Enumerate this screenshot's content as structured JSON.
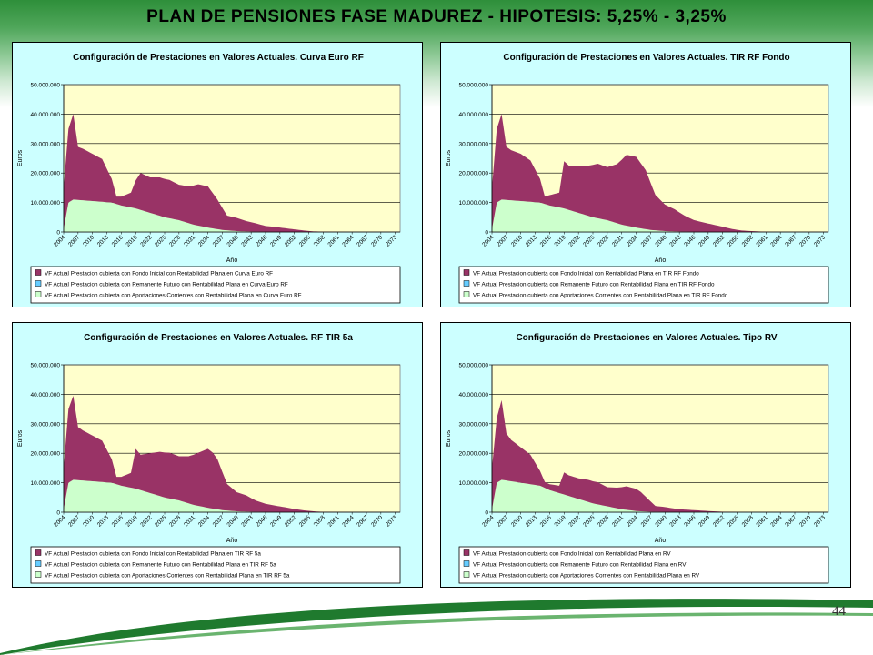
{
  "slide": {
    "title": "PLAN DE PENSIONES FASE MADUREZ  -  HIPOTESIS:  5,25%  -  3,25%",
    "page_number": "44"
  },
  "colors": {
    "panel_bg": "#ccffff",
    "plot_bg": "#ffffcc",
    "series_fondo": "#993366",
    "series_remanente": "#66ccff",
    "series_aportaciones": "#ccffcc",
    "header_green": "#2e8f3a"
  },
  "chart_data": [
    {
      "type": "area",
      "title": "Configuración de Prestaciones en Valores Actuales. Curva Euro RF",
      "xlabel": "Año",
      "ylabel": "Euros",
      "ylim": [
        0,
        50000000
      ],
      "yticks": [
        "0",
        "10.000.000",
        "20.000.000",
        "30.000.000",
        "40.000.000",
        "50.000.000"
      ],
      "xlim": [
        2004,
        2074
      ],
      "xticks": [
        "2004",
        "2007",
        "2010",
        "2013",
        "2016",
        "2019",
        "2022",
        "2025",
        "2028",
        "2031",
        "2034",
        "2037",
        "2040",
        "2043",
        "2046",
        "2049",
        "2052",
        "2055",
        "2058",
        "2061",
        "2064",
        "2067",
        "2070",
        "2073"
      ],
      "grid": true,
      "legend_position": "bottom",
      "stacked": true,
      "series": [
        {
          "name": "VF Actual Prestacion cubierta con Fondo Inicial con Rentabilidad Plana en Curva Euro RF",
          "x": [
            2004,
            2005,
            2006,
            2007,
            2008,
            2010,
            2012,
            2014,
            2015,
            2016,
            2018,
            2019,
            2020,
            2022,
            2024,
            2026,
            2028,
            2030,
            2032,
            2034,
            2035,
            2036,
            2037,
            2038,
            2040,
            2042,
            2044,
            2046,
            2048,
            2050,
            2052,
            2054,
            2056,
            2058,
            2062,
            2070,
            2074
          ],
          "values": [
            14000000,
            25000000,
            29000000,
            18000000,
            17500000,
            16000000,
            14500000,
            8000000,
            2500000,
            3000000,
            5000000,
            9500000,
            12500000,
            12000000,
            13000000,
            13000000,
            12000000,
            12500000,
            14000000,
            14000000,
            12000000,
            10000000,
            7500000,
            5000000,
            4500000,
            3500000,
            2800000,
            2000000,
            1700000,
            1300000,
            900000,
            500000,
            200000,
            100000,
            0,
            0,
            0
          ]
        },
        {
          "name": "VF Actual Prestacion cubierta con Remanente Futuro con Rentabilidad Plana en Curva Euro RF",
          "x": [
            2004,
            2074
          ],
          "values": [
            0,
            0
          ]
        },
        {
          "name": "VF Actual Prestacion cubierta con Aportaciones Corrientes con Rentabilidad Plana en Curva Euro RF",
          "x": [
            2004,
            2005,
            2006,
            2010,
            2014,
            2016,
            2019,
            2022,
            2025,
            2028,
            2031,
            2034,
            2037,
            2040,
            2043,
            2046,
            2050,
            2054,
            2058,
            2062,
            2074
          ],
          "values": [
            1000000,
            10000000,
            11000000,
            10500000,
            10000000,
            9000000,
            8000000,
            6500000,
            5000000,
            4000000,
            2500000,
            1500000,
            700000,
            300000,
            150000,
            50000,
            0,
            0,
            0,
            0,
            0
          ]
        }
      ]
    },
    {
      "type": "area",
      "title": "Configuración de Prestaciones en Valores Actuales. TIR RF Fondo",
      "xlabel": "Año",
      "ylabel": "Euros",
      "ylim": [
        0,
        50000000
      ],
      "yticks": [
        "0",
        "10.000.000",
        "20.000.000",
        "30.000.000",
        "40.000.000",
        "50.000.000"
      ],
      "xlim": [
        2004,
        2074
      ],
      "xticks": [
        "2004",
        "2007",
        "2010",
        "2013",
        "2016",
        "2019",
        "2022",
        "2025",
        "2028",
        "2031",
        "2034",
        "2037",
        "2040",
        "2043",
        "2046",
        "2049",
        "2052",
        "2055",
        "2058",
        "2061",
        "2064",
        "2067",
        "2070",
        "2073"
      ],
      "grid": true,
      "legend_position": "bottom",
      "stacked": true,
      "series": [
        {
          "name": "VF Actual Prestacion cubierta con Fondo Inicial con Rentabilidad Plana en TIR RF Fondo",
          "x": [
            2004,
            2005,
            2006,
            2007,
            2008,
            2010,
            2012,
            2014,
            2015,
            2016,
            2018,
            2019,
            2020,
            2022,
            2024,
            2026,
            2028,
            2030,
            2032,
            2034,
            2035,
            2036,
            2037,
            2038,
            2040,
            2042,
            2044,
            2046,
            2048,
            2050,
            2052,
            2054,
            2056,
            2058,
            2062,
            2070,
            2074
          ],
          "values": [
            14000000,
            25000000,
            29000000,
            18000000,
            17000000,
            16000000,
            14000000,
            8000000,
            2500000,
            3500000,
            5000000,
            16000000,
            15000000,
            16000000,
            17000000,
            18500000,
            18000000,
            20000000,
            24000000,
            24000000,
            22000000,
            20000000,
            16000000,
            12000000,
            9000000,
            7500000,
            5500000,
            4000000,
            3200000,
            2500000,
            1800000,
            1000000,
            500000,
            300000,
            0,
            0,
            0
          ]
        },
        {
          "name": "VF Actual Prestacion cubierta con Remanente Futuro con Rentabilidad Plana en TIR RF Fondo",
          "x": [
            2004,
            2074
          ],
          "values": [
            0,
            0
          ]
        },
        {
          "name": "VF Actual Prestacion cubierta con Aportaciones Corrientes con Rentabilidad Plana en TIR RF Fondo",
          "x": [
            2004,
            2005,
            2006,
            2010,
            2014,
            2016,
            2019,
            2022,
            2025,
            2028,
            2031,
            2034,
            2037,
            2040,
            2043,
            2046,
            2050,
            2054,
            2058,
            2062,
            2074
          ],
          "values": [
            1000000,
            10000000,
            11000000,
            10500000,
            10000000,
            9000000,
            8000000,
            6500000,
            5000000,
            4000000,
            2500000,
            1500000,
            700000,
            300000,
            150000,
            50000,
            0,
            0,
            0,
            0,
            0
          ]
        }
      ]
    },
    {
      "type": "area",
      "title": "Configuración de Prestaciones en Valores Actuales. RF TIR 5a",
      "xlabel": "Año",
      "ylabel": "Euros",
      "ylim": [
        0,
        50000000
      ],
      "yticks": [
        "0",
        "10.000.000",
        "20.000.000",
        "30.000.000",
        "40.000.000",
        "50.000.000"
      ],
      "xlim": [
        2004,
        2074
      ],
      "xticks": [
        "2004",
        "2007",
        "2010",
        "2013",
        "2016",
        "2019",
        "2022",
        "2025",
        "2028",
        "2031",
        "2034",
        "2037",
        "2040",
        "2043",
        "2046",
        "2049",
        "2052",
        "2055",
        "2058",
        "2061",
        "2064",
        "2067",
        "2070",
        "2073"
      ],
      "grid": true,
      "legend_position": "bottom",
      "stacked": true,
      "series": [
        {
          "name": "VF Actual Prestacion cubierta con Fondo Inicial con Rentabilidad Plana en TIR RF 5a",
          "x": [
            2004,
            2005,
            2006,
            2007,
            2008,
            2010,
            2012,
            2014,
            2015,
            2016,
            2018,
            2019,
            2020,
            2022,
            2024,
            2026,
            2028,
            2030,
            2032,
            2034,
            2035,
            2036,
            2037,
            2038,
            2040,
            2042,
            2044,
            2046,
            2048,
            2050,
            2052,
            2054,
            2056,
            2058,
            2062,
            2070,
            2074
          ],
          "values": [
            14000000,
            25000000,
            28500000,
            18000000,
            17000000,
            15500000,
            14000000,
            8000000,
            2500000,
            3000000,
            5000000,
            13500000,
            12000000,
            13500000,
            15000000,
            15500000,
            15000000,
            16000000,
            18000000,
            20000000,
            19000000,
            17000000,
            13000000,
            9000000,
            6500000,
            5500000,
            3800000,
            2800000,
            2200000,
            1700000,
            1100000,
            600000,
            300000,
            100000,
            0,
            0,
            0
          ]
        },
        {
          "name": "VF Actual Prestacion cubierta con Remanente Futuro con Rentabilidad Plana en TIR RF 5a",
          "x": [
            2004,
            2074
          ],
          "values": [
            0,
            0
          ]
        },
        {
          "name": "VF Actual Prestacion cubierta con Aportaciones Corrientes con Rentabilidad Plana en TIR RF 5a",
          "x": [
            2004,
            2005,
            2006,
            2010,
            2014,
            2016,
            2019,
            2022,
            2025,
            2028,
            2031,
            2034,
            2037,
            2040,
            2043,
            2046,
            2050,
            2054,
            2058,
            2062,
            2074
          ],
          "values": [
            1000000,
            10000000,
            11000000,
            10500000,
            10000000,
            9000000,
            8000000,
            6500000,
            5000000,
            4000000,
            2500000,
            1500000,
            700000,
            300000,
            150000,
            50000,
            0,
            0,
            0,
            0,
            0
          ]
        }
      ]
    },
    {
      "type": "area",
      "title": "Configuración de Prestaciones en Valores Actuales. Tipo RV",
      "xlabel": "Año",
      "ylabel": "Euros",
      "ylim": [
        0,
        50000000
      ],
      "yticks": [
        "0",
        "10.000.000",
        "20.000.000",
        "30.000.000",
        "40.000.000",
        "50.000.000"
      ],
      "xlim": [
        2004,
        2074
      ],
      "xticks": [
        "2004",
        "2007",
        "2010",
        "2013",
        "2016",
        "2019",
        "2022",
        "2025",
        "2028",
        "2031",
        "2034",
        "2037",
        "2040",
        "2043",
        "2046",
        "2049",
        "2052",
        "2055",
        "2058",
        "2061",
        "2064",
        "2067",
        "2070",
        "2073"
      ],
      "grid": true,
      "legend_position": "bottom",
      "stacked": true,
      "series": [
        {
          "name": "VF Actual Prestacion cubierta con Fondo Inicial con Rentabilidad Plana en RV",
          "x": [
            2004,
            2005,
            2006,
            2007,
            2008,
            2010,
            2012,
            2014,
            2015,
            2016,
            2018,
            2019,
            2020,
            2022,
            2024,
            2026,
            2028,
            2030,
            2032,
            2034,
            2035,
            2036,
            2037,
            2038,
            2040,
            2042,
            2044,
            2046,
            2048,
            2050,
            2052,
            2054,
            2056,
            2058,
            2062,
            2070,
            2074
          ],
          "values": [
            14000000,
            22000000,
            27000000,
            16000000,
            14000000,
            12000000,
            10000000,
            5000000,
            2000000,
            2000000,
            2500000,
            7500000,
            7000000,
            7000000,
            7500000,
            7500000,
            6500000,
            7000000,
            8000000,
            7500000,
            6500000,
            5000000,
            3500000,
            2000000,
            1700000,
            1200000,
            900000,
            700000,
            500000,
            300000,
            150000,
            80000,
            0,
            0,
            0,
            0,
            0
          ]
        },
        {
          "name": "VF Actual Prestacion cubierta con Remanente Futuro con Rentabilidad Plana en RV",
          "x": [
            2004,
            2074
          ],
          "values": [
            0,
            0
          ]
        },
        {
          "name": "VF Actual Prestacion cubierta con Aportaciones Corrientes con Rentabilidad Plana en RV",
          "x": [
            2004,
            2005,
            2006,
            2010,
            2014,
            2016,
            2019,
            2022,
            2025,
            2028,
            2031,
            2034,
            2037,
            2040,
            2043,
            2046,
            2050,
            2054,
            2058,
            2062,
            2074
          ],
          "values": [
            1000000,
            10000000,
            11000000,
            10000000,
            9000000,
            7500000,
            6000000,
            4500000,
            3000000,
            2000000,
            1000000,
            400000,
            150000,
            50000,
            0,
            0,
            0,
            0,
            0,
            0,
            0
          ]
        }
      ]
    }
  ]
}
